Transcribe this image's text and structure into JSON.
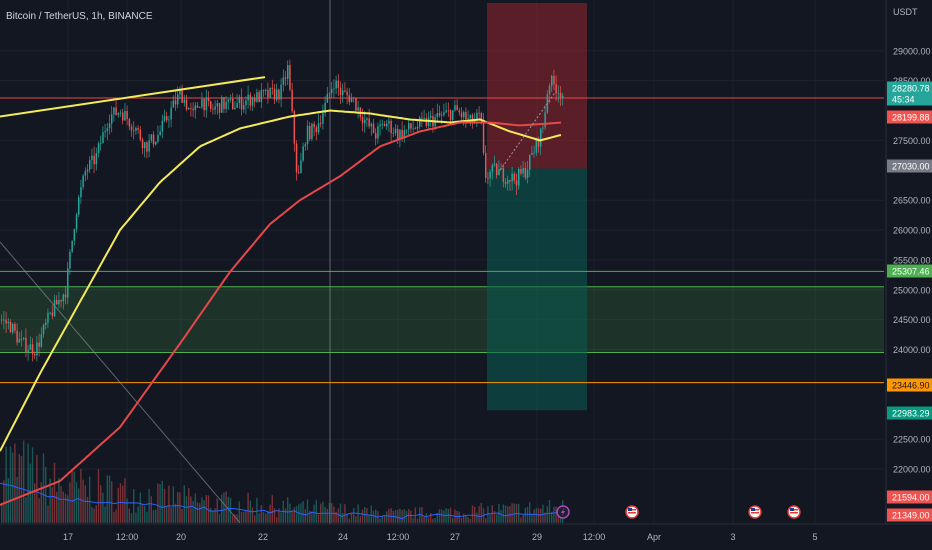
{
  "header": {
    "symbol_title": "Bitcoin / TetherUS, 1h, BINANCE"
  },
  "colors": {
    "background": "#131722",
    "grid": "#1e222d",
    "text": "#b2b5be",
    "bull": "#26a69a",
    "bear": "#ef5350",
    "ma_fast": "#f5eb5a",
    "ma_slow": "#e8474a",
    "volume_line": "#2962ff",
    "trend_line": "#f5eb5a",
    "demand_zone": "#4caf50",
    "stop_zone": "#b22833",
    "target_zone": "#0a5c52"
  },
  "chart_data": {
    "type": "candlestick",
    "price_axis": {
      "unit": "USDT",
      "ticks": [
        29000,
        28500,
        27500,
        26500,
        26000,
        25500,
        25000,
        24500,
        24000,
        22500,
        22000
      ],
      "range": [
        21080,
        29850
      ]
    },
    "time_axis": {
      "labels": [
        "17",
        "12:00",
        "20",
        "22",
        "24",
        "12:00",
        "27",
        "29",
        "12:00",
        "Apr",
        "3",
        "5"
      ]
    },
    "price_labels": [
      {
        "text": "28280.78",
        "subtext": "45:34",
        "kind": "current",
        "value": 28280.78,
        "color": "#26a69a"
      },
      {
        "text": "28199.88",
        "kind": "ma_slow",
        "value": 28199.88,
        "color": "#ef5350"
      },
      {
        "text": "27030.00",
        "kind": "entry",
        "value": 27030,
        "color": "#787b86"
      },
      {
        "text": "25307.46",
        "kind": "level",
        "value": 25307.46,
        "color": "#4caf50"
      },
      {
        "text": "23446.90",
        "kind": "level",
        "value": 23446.9,
        "color": "#ff9800"
      },
      {
        "text": "22983.29",
        "kind": "target",
        "value": 22983.29,
        "color": "#089981"
      },
      {
        "text": "21594.00",
        "kind": "bottom",
        "value": 21594,
        "color": "#ef5350"
      },
      {
        "text": "21349.00",
        "kind": "bottom",
        "value": 21349,
        "color": "#ef5350"
      }
    ],
    "price_series": {
      "points": [
        [
          0,
          24500
        ],
        [
          10,
          24400
        ],
        [
          20,
          24100
        ],
        [
          35,
          24000
        ],
        [
          50,
          24600
        ],
        [
          65,
          25000
        ],
        [
          75,
          26300
        ],
        [
          85,
          27000
        ],
        [
          95,
          27200
        ],
        [
          108,
          27900
        ],
        [
          120,
          28000
        ],
        [
          135,
          27700
        ],
        [
          145,
          27400
        ],
        [
          158,
          27600
        ],
        [
          170,
          28000
        ],
        [
          180,
          28300
        ],
        [
          192,
          27900
        ],
        [
          200,
          28200
        ],
        [
          210,
          28000
        ],
        [
          220,
          28100
        ],
        [
          235,
          28100
        ],
        [
          250,
          28200
        ],
        [
          265,
          28250
        ],
        [
          280,
          28300
        ],
        [
          287,
          28700
        ],
        [
          293,
          27600
        ],
        [
          297,
          26800
        ],
        [
          305,
          27600
        ],
        [
          315,
          27700
        ],
        [
          325,
          28100
        ],
        [
          333,
          28500
        ],
        [
          340,
          28300
        ],
        [
          352,
          28200
        ],
        [
          365,
          27800
        ],
        [
          375,
          27600
        ],
        [
          385,
          27800
        ],
        [
          398,
          27600
        ],
        [
          410,
          27700
        ],
        [
          425,
          27800
        ],
        [
          440,
          27900
        ],
        [
          455,
          28000
        ],
        [
          470,
          27800
        ],
        [
          480,
          27900
        ],
        [
          484,
          26900
        ],
        [
          495,
          27000
        ],
        [
          505,
          26900
        ],
        [
          515,
          26850
        ],
        [
          525,
          27000
        ],
        [
          535,
          27400
        ],
        [
          542,
          27700
        ],
        [
          548,
          28500
        ],
        [
          555,
          28400
        ],
        [
          563,
          28250
        ]
      ],
      "wick_spread": 160
    },
    "series": [
      {
        "name": "",
        "color": "#f5eb5a",
        "points": [
          [
            0,
            22300
          ],
          [
            40,
            23600
          ],
          [
            80,
            24800
          ],
          [
            120,
            26000
          ],
          [
            160,
            26800
          ],
          [
            200,
            27400
          ],
          [
            240,
            27700
          ],
          [
            290,
            27900
          ],
          [
            330,
            28000
          ],
          [
            370,
            27950
          ],
          [
            410,
            27850
          ],
          [
            450,
            27800
          ],
          [
            480,
            27850
          ],
          [
            510,
            27650
          ],
          [
            540,
            27500
          ],
          [
            563,
            27600
          ]
        ]
      },
      {
        "name": "",
        "color": "#e8474a",
        "points": [
          [
            0,
            21400
          ],
          [
            60,
            21800
          ],
          [
            120,
            22700
          ],
          [
            180,
            24100
          ],
          [
            230,
            25300
          ],
          [
            270,
            26100
          ],
          [
            300,
            26500
          ],
          [
            340,
            26900
          ],
          [
            380,
            27400
          ],
          [
            420,
            27650
          ],
          [
            460,
            27800
          ],
          [
            490,
            27800
          ],
          [
            520,
            27750
          ],
          [
            563,
            27800
          ]
        ]
      }
    ],
    "trend_line": {
      "from": [
        0,
        27900
      ],
      "to": [
        265,
        28560
      ]
    },
    "diagonal_line": {
      "from": [
        0,
        25800
      ],
      "to": [
        240,
        21100
      ]
    },
    "vertical_marker_x": 330,
    "horizontal_lines": [
      {
        "value": 28210,
        "color": "#e8474a"
      },
      {
        "value": 25307.46,
        "color": "#4caf50"
      },
      {
        "value": 23446.9,
        "color": "#ff9800"
      }
    ],
    "zones": [
      {
        "type": "demand",
        "x": [
          0,
          884
        ],
        "y": [
          23950,
          25050
        ],
        "color": "#4caf50"
      },
      {
        "type": "stop",
        "x": [
          487,
          587
        ],
        "y": [
          27030,
          29800
        ],
        "color": "#b22833"
      },
      {
        "type": "target",
        "x": [
          487,
          587
        ],
        "y": [
          22983.29,
          27030
        ],
        "color": "#0a5c52"
      }
    ],
    "volume": {
      "baseline": 21100,
      "envelope": [
        [
          0,
          1.0
        ],
        [
          20,
          0.9
        ],
        [
          60,
          0.6
        ],
        [
          120,
          0.5
        ],
        [
          200,
          0.35
        ],
        [
          300,
          0.25
        ],
        [
          400,
          0.15
        ],
        [
          480,
          0.2
        ],
        [
          563,
          0.25
        ]
      ]
    },
    "event_markers": [
      {
        "x": 563,
        "icon": "lightning-icon"
      },
      {
        "x": 632,
        "icon": "us-flag-icon"
      },
      {
        "x": 755,
        "icon": "us-flag-icon"
      },
      {
        "x": 794,
        "icon": "us-flag-icon"
      }
    ]
  }
}
